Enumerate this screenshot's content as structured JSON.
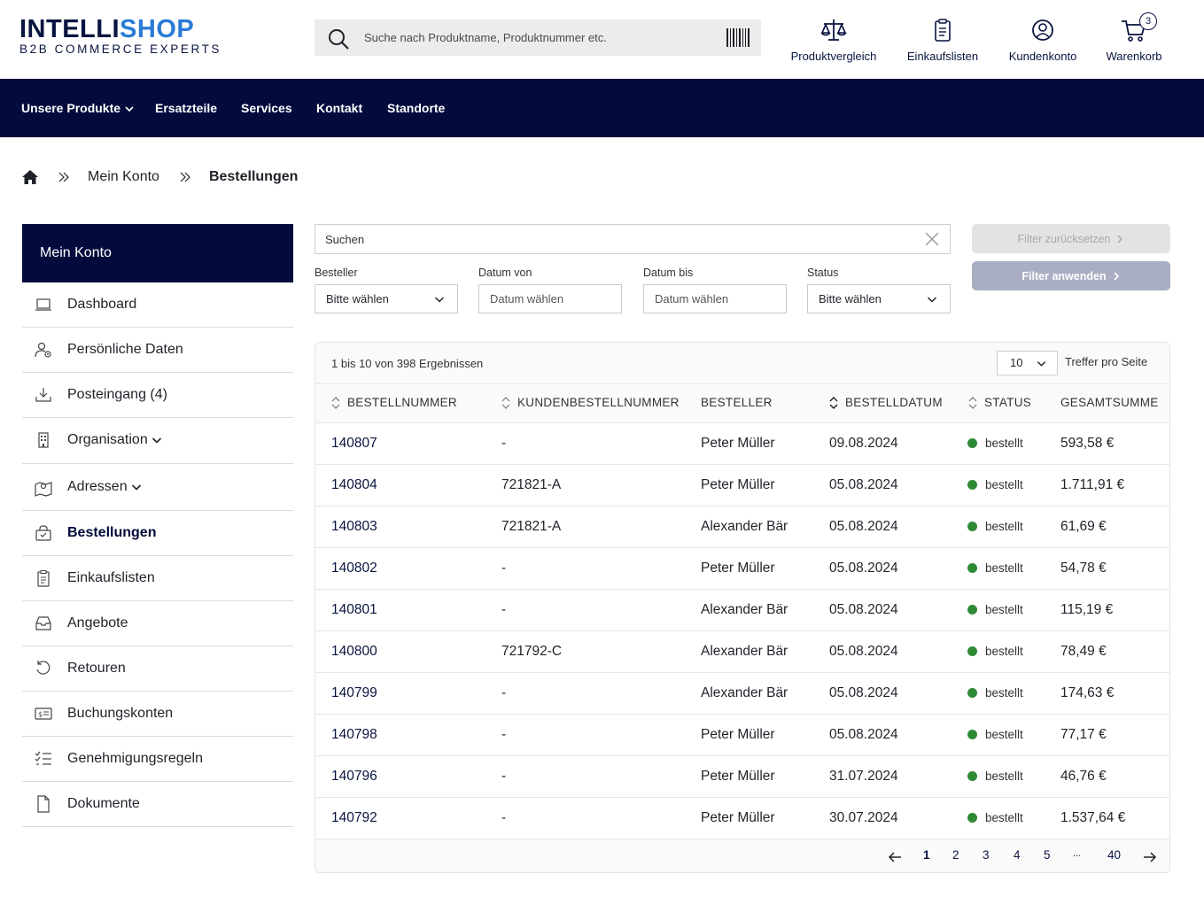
{
  "header": {
    "logo_part1": "INTELLI",
    "logo_part2": "SHOP",
    "logo_sub": "B2B COMMERCE EXPERTS",
    "search_placeholder": "Suche nach Produktname, Produktnummer etc.",
    "nav": [
      {
        "label": "Produktvergleich",
        "icon": "scale-icon"
      },
      {
        "label": "Einkaufslisten",
        "icon": "clipboard-icon"
      },
      {
        "label": "Kundenkonto",
        "icon": "user-circle-icon"
      },
      {
        "label": "Warenkorb",
        "icon": "cart-icon",
        "badge": "3"
      }
    ]
  },
  "navbar": {
    "items": [
      "Unsere Produkte",
      "Ersatzteile",
      "Services",
      "Kontakt",
      "Standorte"
    ]
  },
  "breadcrumb": {
    "items": [
      "Mein Konto",
      "Bestellungen"
    ]
  },
  "sidebar": {
    "title": "Mein Konto",
    "items": [
      {
        "label": "Dashboard",
        "icon": "laptop-icon"
      },
      {
        "label": "Persönliche Daten",
        "icon": "user-settings-icon"
      },
      {
        "label": "Posteingang (4)",
        "icon": "download-icon"
      },
      {
        "label": "Organisation",
        "icon": "building-icon",
        "expandable": true
      },
      {
        "label": "Adressen",
        "icon": "map-icon",
        "expandable": true
      },
      {
        "label": "Bestellungen",
        "icon": "bag-icon",
        "active": true
      },
      {
        "label": "Einkaufslisten",
        "icon": "clipboard-icon"
      },
      {
        "label": "Angebote",
        "icon": "tray-icon"
      },
      {
        "label": "Retouren",
        "icon": "return-icon"
      },
      {
        "label": "Buchungskonten",
        "icon": "money-card-icon"
      },
      {
        "label": "Genehmigungsregeln",
        "icon": "checklist-icon"
      },
      {
        "label": "Dokumente",
        "icon": "document-icon"
      }
    ]
  },
  "filters": {
    "search_placeholder": "Suchen",
    "reset_label": "Filter zurücksetzen",
    "apply_label": "Filter anwenden",
    "fields": [
      {
        "label": "Besteller",
        "value": "Bitte wählen",
        "type": "select"
      },
      {
        "label": "Datum von",
        "value": "Datum wählen",
        "type": "date"
      },
      {
        "label": "Datum bis",
        "value": "Datum wählen",
        "type": "date"
      },
      {
        "label": "Status",
        "value": "Bitte wählen",
        "type": "select"
      }
    ]
  },
  "table": {
    "results_text": "1 bis 10 von 398 Ergebnissen",
    "per_page": "10",
    "per_page_label": "Treffer pro Seite",
    "columns": [
      "BESTELLNUMMER",
      "KUNDENBESTELLNUMMER",
      "BESTELLER",
      "BESTELLDATUM",
      "STATUS",
      "GESAMTSUMME"
    ],
    "rows": [
      {
        "nr": "140807",
        "kunde": "-",
        "besteller": "Peter Müller",
        "datum": "09.08.2024",
        "status": "bestellt",
        "summe": "593,58 €"
      },
      {
        "nr": "140804",
        "kunde": "721821-A",
        "besteller": "Peter Müller",
        "datum": "05.08.2024",
        "status": "bestellt",
        "summe": "1.711,91 €"
      },
      {
        "nr": "140803",
        "kunde": "721821-A",
        "besteller": "Alexander Bär",
        "datum": "05.08.2024",
        "status": "bestellt",
        "summe": "61,69 €"
      },
      {
        "nr": "140802",
        "kunde": "-",
        "besteller": "Peter Müller",
        "datum": "05.08.2024",
        "status": "bestellt",
        "summe": "54,78 €"
      },
      {
        "nr": "140801",
        "kunde": "-",
        "besteller": "Alexander Bär",
        "datum": "05.08.2024",
        "status": "bestellt",
        "summe": "115,19 €"
      },
      {
        "nr": "140800",
        "kunde": "721792-C",
        "besteller": "Alexander Bär",
        "datum": "05.08.2024",
        "status": "bestellt",
        "summe": "78,49 €"
      },
      {
        "nr": "140799",
        "kunde": "-",
        "besteller": "Alexander Bär",
        "datum": "05.08.2024",
        "status": "bestellt",
        "summe": "174,63 €"
      },
      {
        "nr": "140798",
        "kunde": "-",
        "besteller": "Peter Müller",
        "datum": "05.08.2024",
        "status": "bestellt",
        "summe": "77,17 €"
      },
      {
        "nr": "140796",
        "kunde": "-",
        "besteller": "Peter Müller",
        "datum": "31.07.2024",
        "status": "bestellt",
        "summe": "46,76 €"
      },
      {
        "nr": "140792",
        "kunde": "-",
        "besteller": "Peter Müller",
        "datum": "30.07.2024",
        "status": "bestellt",
        "summe": "1.537,64 €"
      }
    ],
    "status_color": "#2f8a35",
    "pagination": [
      "1",
      "2",
      "3",
      "4",
      "5",
      "...",
      "40"
    ]
  },
  "colors": {
    "brand_dark": "#020b3c",
    "brand_blue": "#2a7bd5"
  }
}
